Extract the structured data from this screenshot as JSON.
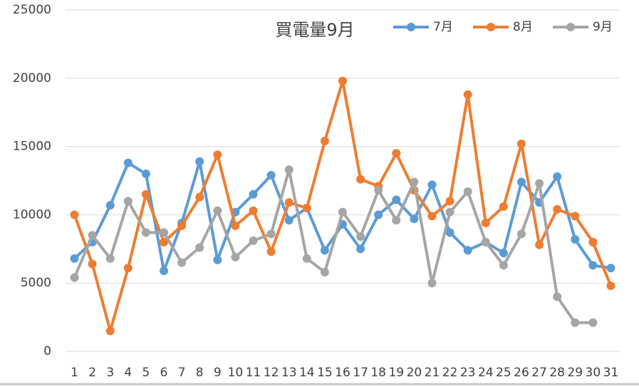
{
  "chart_data": {
    "type": "line",
    "title": "買電量9月",
    "categories": [
      "1",
      "2",
      "3",
      "4",
      "5",
      "6",
      "7",
      "8",
      "9",
      "10",
      "11",
      "12",
      "13",
      "14",
      "15",
      "16",
      "17",
      "18",
      "19",
      "20",
      "21",
      "22",
      "23",
      "24",
      "25",
      "26",
      "27",
      "28",
      "29",
      "30",
      "31"
    ],
    "series": [
      {
        "name": "7月",
        "color": "#5b9bd5",
        "values": [
          6800,
          8000,
          10700,
          13800,
          13000,
          5900,
          9400,
          13900,
          6700,
          10200,
          11500,
          12900,
          9600,
          10500,
          7400,
          9300,
          7500,
          10000,
          11100,
          9700,
          12200,
          8700,
          7400,
          8000,
          7200,
          12400,
          10900,
          12800,
          8200,
          6300,
          6100
        ]
      },
      {
        "name": "8月",
        "color": "#ed7d31",
        "values": [
          10000,
          6400,
          1500,
          6100,
          11500,
          8000,
          9200,
          11300,
          14400,
          9200,
          10300,
          7300,
          10900,
          10500,
          15400,
          19800,
          12600,
          12100,
          14500,
          11800,
          9900,
          11000,
          18800,
          9400,
          10600,
          15200,
          7800,
          10400,
          9900,
          8000,
          4800
        ]
      },
      {
        "name": "9月",
        "color": "#a5a5a5",
        "values": [
          5400,
          8500,
          6800,
          11000,
          8700,
          8700,
          6500,
          7600,
          10300,
          6900,
          8100,
          8600,
          13300,
          6800,
          5800,
          10200,
          8400,
          11800,
          9600,
          12400,
          5000,
          10200,
          11700,
          8000,
          6300,
          8600,
          12300,
          4000,
          2100,
          2100,
          null
        ]
      }
    ],
    "ylim": [
      0,
      25000
    ],
    "yticks": [
      0,
      5000,
      10000,
      15000,
      20000,
      25000
    ],
    "grid": true
  }
}
